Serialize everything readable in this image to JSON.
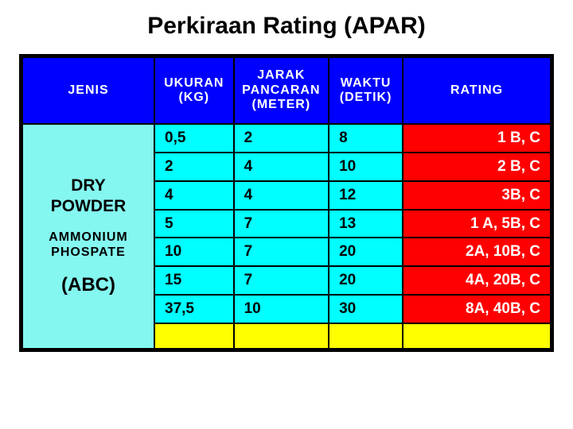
{
  "title": "Perkiraan Rating (APAR)",
  "colors": {
    "header_bg": "#0000ff",
    "header_text": "#ffffff",
    "jenis_bg": "#84f7f0",
    "data_bg": "#00ffff",
    "rating_bg": "#ff0000",
    "rating_text": "#ffffff",
    "yellow_bg": "#ffff00",
    "border": "#000000"
  },
  "columns": {
    "jenis": "JENIS",
    "ukuran": "UKURAN (KG)",
    "jarak": "JARAK PANCARAN (METER)",
    "waktu": "WAKTU (DETIK)",
    "rating": "RATING"
  },
  "jenis": {
    "line1": "DRY",
    "line2": "POWDER",
    "line3": "AMMONIUM",
    "line4": "PHOSPATE",
    "line5": "(ABC)"
  },
  "rows": [
    {
      "ukuran": "0,5",
      "jarak": "2",
      "waktu": "8",
      "rating": "1 B, C"
    },
    {
      "ukuran": "2",
      "jarak": "4",
      "waktu": "10",
      "rating": "2 B, C"
    },
    {
      "ukuran": "4",
      "jarak": "4",
      "waktu": "12",
      "rating": "3B, C"
    },
    {
      "ukuran": "5",
      "jarak": "7",
      "waktu": "13",
      "rating": "1 A, 5B, C"
    },
    {
      "ukuran": "10",
      "jarak": "7",
      "waktu": "20",
      "rating": "2A, 10B, C"
    },
    {
      "ukuran": "15",
      "jarak": "7",
      "waktu": "20",
      "rating": "4A, 20B, C"
    },
    {
      "ukuran": "37,5",
      "jarak": "10",
      "waktu": "30",
      "rating": "8A, 40B, C"
    }
  ]
}
